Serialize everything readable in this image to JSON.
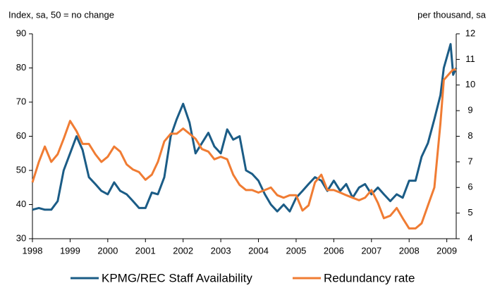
{
  "chart_data": {
    "type": "line",
    "y_label": "Index, sa, 50 = no change",
    "y2_label": "per thousand, sa",
    "x": [
      1998,
      1998.17,
      1998.33,
      1998.5,
      1998.67,
      1998.83,
      1999,
      1999.17,
      1999.33,
      1999.5,
      1999.67,
      1999.83,
      2000,
      2000.17,
      2000.33,
      2000.5,
      2000.67,
      2000.83,
      2001,
      2001.17,
      2001.33,
      2001.5,
      2001.67,
      2001.83,
      2002,
      2002.17,
      2002.33,
      2002.5,
      2002.67,
      2002.83,
      2003,
      2003.17,
      2003.33,
      2003.5,
      2003.67,
      2003.83,
      2004,
      2004.17,
      2004.33,
      2004.5,
      2004.67,
      2004.83,
      2005,
      2005.17,
      2005.33,
      2005.5,
      2005.67,
      2005.83,
      2006,
      2006.17,
      2006.33,
      2006.5,
      2006.67,
      2006.83,
      2007,
      2007.17,
      2007.33,
      2007.5,
      2007.67,
      2007.83,
      2008,
      2008.17,
      2008.33,
      2008.5,
      2008.67,
      2008.83,
      2008.92,
      2009.1,
      2009.17,
      2009.25
    ],
    "series": [
      {
        "name": "KPMG/REC Staff Availability",
        "color": "#1b5c86",
        "axis": "y",
        "values": [
          38.5,
          39,
          38.5,
          38.5,
          41,
          50,
          55,
          60,
          56,
          48,
          46,
          44,
          43,
          46.5,
          44,
          43,
          41,
          39,
          39,
          43.5,
          43,
          48,
          60,
          65,
          69.5,
          64,
          55,
          58,
          61,
          57,
          55,
          62,
          59,
          60,
          50,
          49,
          47,
          43,
          40,
          38,
          40,
          38,
          42,
          44,
          46,
          48,
          47,
          44,
          47,
          44,
          46,
          42,
          45,
          46,
          43,
          45,
          43,
          41,
          43,
          42,
          47,
          47,
          54,
          58,
          65,
          72,
          80,
          87,
          78,
          80
        ]
      },
      {
        "name": "Redundancy rate",
        "color": "#f07c33",
        "axis": "y2",
        "values": [
          6.2,
          7.0,
          7.6,
          7.0,
          7.3,
          7.9,
          8.6,
          8.2,
          7.7,
          7.7,
          7.3,
          7.0,
          7.2,
          7.6,
          7.4,
          6.9,
          6.7,
          6.6,
          6.3,
          6.5,
          7.0,
          7.8,
          8.1,
          8.1,
          8.3,
          8.1,
          7.9,
          7.5,
          7.4,
          7.1,
          7.2,
          7.1,
          6.5,
          6.1,
          5.9,
          5.9,
          5.8,
          5.9,
          6.0,
          5.7,
          5.6,
          5.7,
          5.7,
          5.1,
          5.3,
          6.2,
          6.5,
          5.9,
          5.9,
          5.8,
          5.7,
          5.6,
          5.5,
          5.6,
          5.9,
          5.4,
          4.8,
          4.9,
          5.2,
          4.8,
          4.4,
          4.4,
          4.6,
          5.3,
          6.0,
          8.5,
          10.2,
          10.5,
          10.6,
          10.6
        ]
      }
    ],
    "xlim": [
      1998,
      2009.25
    ],
    "xticks": [
      1998,
      1999,
      2000,
      2001,
      2002,
      2003,
      2004,
      2005,
      2006,
      2007,
      2008,
      2009
    ],
    "ylim": [
      30,
      90
    ],
    "yticks": [
      30,
      40,
      50,
      60,
      70,
      80,
      90
    ],
    "y2lim": [
      4,
      12
    ],
    "y2ticks": [
      4,
      5,
      6,
      7,
      8,
      9,
      10,
      11,
      12
    ],
    "legend": "bottom"
  }
}
